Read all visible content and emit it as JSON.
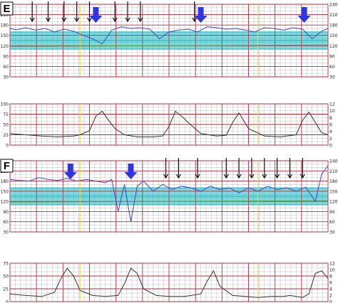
{
  "panels": [
    {
      "label": "E"
    },
    {
      "label": "F"
    }
  ],
  "colors": {
    "band_fill": "#5ed7dd",
    "band_line": "#15b3bd",
    "grid_major": "#c22a3a",
    "grid_minor": "#8a8a8a",
    "fhr_trace": "#4a42c0",
    "maternal_trace": "#5a9e3e",
    "uc_trace": "#333333",
    "blue_arrow": "#2f36e0",
    "black_arrow": "#111111",
    "yellow_line": "#e8d84a"
  },
  "chart_data": [
    {
      "type": "line",
      "panel": "E",
      "fhr": {
        "ylabel": "",
        "ylim": [
          30,
          240
        ],
        "yticks": [
          "240",
          "210",
          "180",
          "150",
          "120",
          "90",
          "60",
          "30"
        ],
        "yticks_right": [
          "240",
          "210",
          "180",
          "150",
          "120",
          "90",
          "60",
          "30"
        ],
        "normal_band": [
          110,
          160
        ],
        "series": [
          {
            "name": "",
            "x": [
              0,
              0.02,
              0.05,
              0.08,
              0.11,
              0.14,
              0.17,
              0.2,
              0.23,
              0.26,
              0.29,
              0.32,
              0.35,
              0.38,
              0.41,
              0.44,
              0.47,
              0.5,
              0.53,
              0.56,
              0.59,
              0.62,
              0.65,
              0.68,
              0.71,
              0.74,
              0.77,
              0.8,
              0.83,
              0.86,
              0.89,
              0.92,
              0.95,
              0.98,
              1
            ],
            "y": [
              170,
              166,
              172,
              165,
              170,
              160,
              168,
              162,
              150,
              140,
              125,
              165,
              175,
              170,
              172,
              168,
              140,
              160,
              165,
              168,
              160,
              175,
              172,
              168,
              170,
              165,
              160,
              172,
              170,
              165,
              172,
              168,
              140,
              162,
              170
            ]
          }
        ],
        "blue_arrows_x": [
          0.27,
          0.6,
          0.925
        ],
        "black_arrows_x": [
          0.07,
          0.12,
          0.17,
          0.21,
          0.25,
          0.33,
          0.37,
          0.41,
          0.58
        ]
      },
      "uc": {
        "ylim": [
          0,
          100
        ],
        "yticks": [
          "100",
          "75",
          "50",
          "25",
          "0"
        ],
        "yticks_right": [
          "12",
          "10",
          "8",
          "6",
          "4",
          "2",
          "0"
        ],
        "series": [
          {
            "name": "",
            "x": [
              0,
              0.05,
              0.1,
              0.15,
              0.2,
              0.22,
              0.25,
              0.27,
              0.29,
              0.31,
              0.33,
              0.36,
              0.4,
              0.45,
              0.48,
              0.5,
              0.52,
              0.54,
              0.56,
              0.6,
              0.65,
              0.68,
              0.7,
              0.72,
              0.75,
              0.8,
              0.85,
              0.9,
              0.92,
              0.94,
              0.96,
              0.98,
              1
            ],
            "y": [
              28,
              25,
              22,
              20,
              22,
              25,
              35,
              70,
              82,
              60,
              40,
              25,
              20,
              20,
              22,
              45,
              82,
              70,
              55,
              28,
              22,
              24,
              55,
              78,
              40,
              22,
              20,
              25,
              60,
              80,
              55,
              30,
              25
            ]
          }
        ]
      }
    },
    {
      "type": "line",
      "panel": "F",
      "fhr": {
        "ylabel": "",
        "ylim": [
          30,
          240
        ],
        "yticks": [
          "240",
          "210",
          "180",
          "150",
          "120",
          "90",
          "60",
          "30"
        ],
        "yticks_right": [
          "240",
          "210",
          "180",
          "150",
          "120",
          "90",
          "60",
          "30"
        ],
        "normal_band": [
          110,
          160
        ],
        "series": [
          {
            "name": "",
            "x": [
              0,
              0.03,
              0.06,
              0.09,
              0.12,
              0.15,
              0.18,
              0.21,
              0.24,
              0.27,
              0.3,
              0.32,
              0.34,
              0.36,
              0.38,
              0.4,
              0.42,
              0.45,
              0.48,
              0.51,
              0.54,
              0.57,
              0.6,
              0.63,
              0.66,
              0.69,
              0.72,
              0.75,
              0.78,
              0.81,
              0.84,
              0.87,
              0.9,
              0.93,
              0.96,
              0.98,
              1
            ],
            "y": [
              185,
              182,
              180,
              190,
              185,
              182,
              188,
              180,
              185,
              180,
              175,
              185,
              90,
              170,
              60,
              165,
              180,
              150,
              170,
              155,
              165,
              160,
              150,
              165,
              155,
              160,
              145,
              160,
              150,
              165,
              155,
              160,
              150,
              162,
              120,
              200,
              225
            ]
          }
        ],
        "blue_arrows_x": [
          0.19,
          0.38
        ],
        "black_arrows_x": [
          0.49,
          0.53,
          0.59,
          0.68,
          0.72,
          0.76,
          0.8,
          0.84,
          0.88,
          0.92
        ]
      },
      "uc": {
        "ylim": [
          0,
          75
        ],
        "yticks": [
          "75",
          "50",
          "25",
          "0"
        ],
        "yticks_right": [
          "12",
          "10",
          "8",
          "6",
          "4",
          "2",
          "0"
        ],
        "series": [
          {
            "name": "",
            "x": [
              0,
              0.05,
              0.1,
              0.14,
              0.16,
              0.18,
              0.2,
              0.22,
              0.26,
              0.3,
              0.34,
              0.36,
              0.38,
              0.4,
              0.42,
              0.46,
              0.5,
              0.55,
              0.6,
              0.62,
              0.64,
              0.66,
              0.7,
              0.74,
              0.78,
              0.82,
              0.86,
              0.88,
              0.9,
              0.92,
              0.94,
              0.96,
              0.98,
              1
            ],
            "y": [
              15,
              12,
              10,
              18,
              45,
              65,
              50,
              22,
              12,
              10,
              12,
              35,
              65,
              55,
              25,
              12,
              10,
              10,
              15,
              40,
              60,
              30,
              12,
              10,
              8,
              10,
              10,
              12,
              10,
              8,
              15,
              55,
              60,
              45
            ]
          }
        ]
      }
    }
  ]
}
